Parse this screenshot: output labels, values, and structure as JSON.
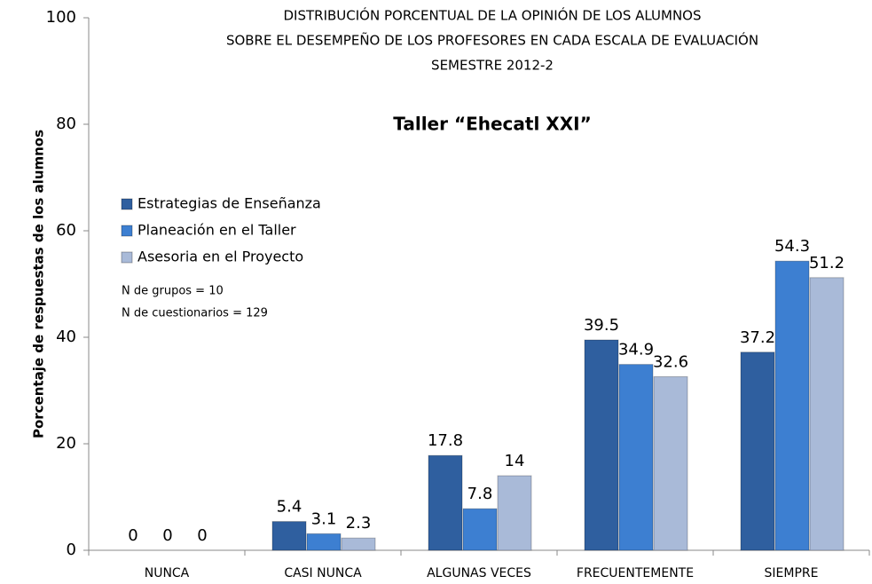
{
  "chart_data": {
    "type": "bar",
    "title": [
      "DISTRIBUCIÓN PORCENTUAL DE LA OPINIÓN DE LOS ALUMNOS",
      "SOBRE EL DESEMPEÑO DE LOS PROFESORES EN CADA ESCALA DE EVALUACIÓN",
      "SEMESTRE 2012-2"
    ],
    "subtitle": "Taller “Ehecatl XXI”",
    "y_label": "Porcentaje de respuestas de los alumnos",
    "annotations": [
      "N de grupos = 10",
      "N de cuestionarios = 129"
    ],
    "categories": [
      "NUNCA",
      "CASI NUNCA",
      "ALGUNAS VECES",
      "FRECUENTEMENTE",
      "SIEMPRE"
    ],
    "series": [
      {
        "name": "Estrategias de Enseñanza",
        "color": "#2f5f9f",
        "values": [
          0,
          5.4,
          17.8,
          39.5,
          37.2
        ]
      },
      {
        "name": "Planeación en el Taller",
        "color": "#3d7fd1",
        "values": [
          0,
          3.1,
          7.8,
          34.9,
          54.3
        ]
      },
      {
        "name": "Asesoria en el Proyecto",
        "color": "#a9bad8",
        "values": [
          0,
          2.3,
          14,
          32.6,
          51.2
        ]
      }
    ],
    "ylim": [
      0,
      100
    ],
    "yticks": [
      0,
      20,
      40,
      60,
      80,
      100
    ],
    "legend": "upper left"
  }
}
